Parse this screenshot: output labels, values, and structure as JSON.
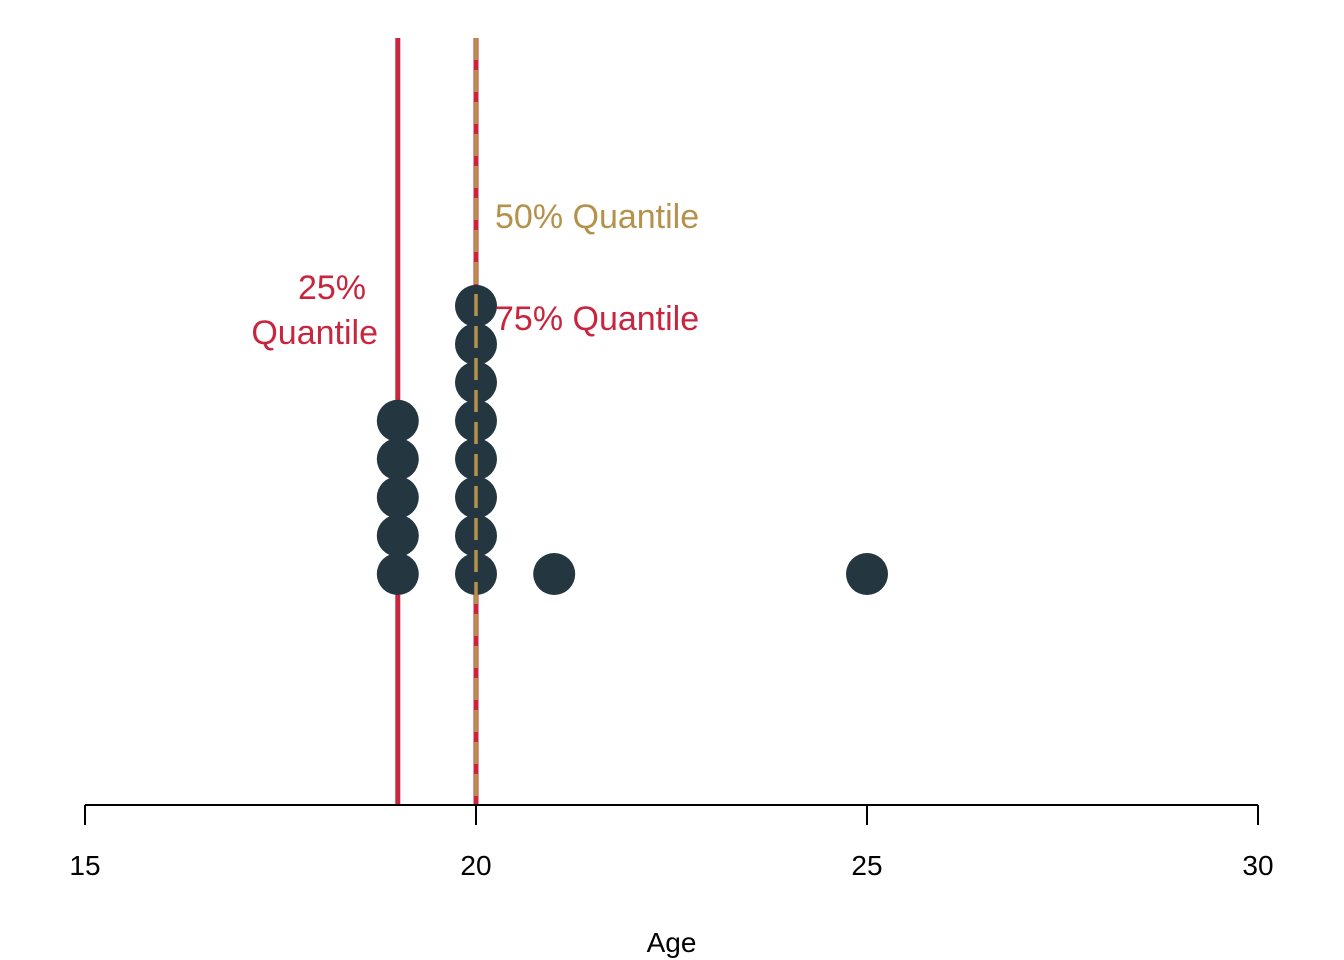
{
  "chart_data": {
    "type": "scatter",
    "title": "",
    "xlabel": "Age",
    "ylabel": "",
    "xlim": [
      15,
      30
    ],
    "x_ticks": [
      15,
      20,
      25,
      30
    ],
    "x_tick_labels": [
      "15",
      "20",
      "25",
      "30"
    ],
    "grid": false,
    "legend": "none",
    "dot_color": "#243640",
    "points": [
      {
        "x": 19,
        "stack": 1
      },
      {
        "x": 19,
        "stack": 2
      },
      {
        "x": 19,
        "stack": 3
      },
      {
        "x": 19,
        "stack": 4
      },
      {
        "x": 19,
        "stack": 5
      },
      {
        "x": 20,
        "stack": 1
      },
      {
        "x": 20,
        "stack": 2
      },
      {
        "x": 20,
        "stack": 3
      },
      {
        "x": 20,
        "stack": 4
      },
      {
        "x": 20,
        "stack": 5
      },
      {
        "x": 20,
        "stack": 6
      },
      {
        "x": 20,
        "stack": 7
      },
      {
        "x": 20,
        "stack": 8
      },
      {
        "x": 21,
        "stack": 1
      },
      {
        "x": 25,
        "stack": 1
      }
    ],
    "reference_lines": [
      {
        "name": "25% Quantile",
        "x": 19,
        "color": "#C8253F",
        "style": "solid"
      },
      {
        "name": "75% Quantile",
        "x": 20,
        "color": "#C8253F",
        "style": "solid"
      },
      {
        "name": "50% Quantile",
        "x": 20,
        "color": "#B5924C",
        "style": "dashed"
      }
    ],
    "annotations": [
      {
        "text_lines": [
          "25%",
          "Quantile"
        ],
        "color": "#C8253F"
      },
      {
        "text_lines": [
          "50% Quantile"
        ],
        "color": "#B5924C"
      },
      {
        "text_lines": [
          "75% Quantile"
        ],
        "color": "#C8253F"
      }
    ]
  }
}
